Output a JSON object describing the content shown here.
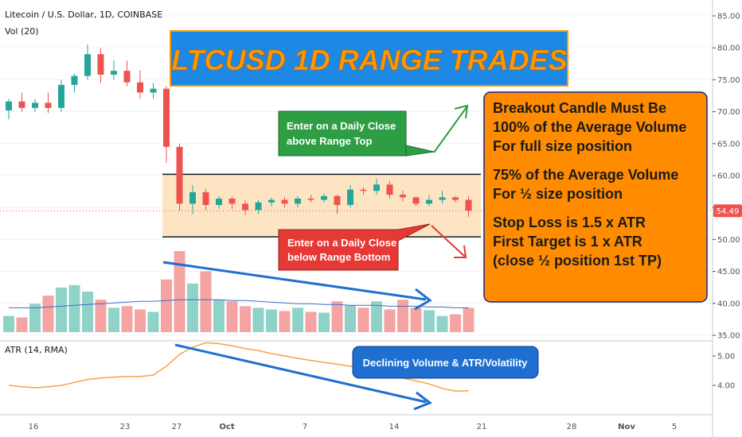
{
  "header": {
    "symbol": "Litecoin / U.S. Dollar, 1D, COINBASE",
    "volume_indicator": "Vol (20)",
    "atr_indicator": "ATR (14, RMA)"
  },
  "annotations": {
    "title": "LTCUSD 1D RANGE TRADES",
    "long_entry": [
      "Enter on a Daily Close",
      "above Range Top"
    ],
    "short_entry": [
      "Enter on a Daily Close",
      "below Range Bottom"
    ],
    "rules": [
      "Breakout Candle Must Be",
      "100% of the Average Volume",
      "For full size position",
      "",
      "75% of the Average Volume",
      "For ½ size position",
      "",
      "Stop Loss is 1.5 x ATR",
      "First Target is 1 x ATR",
      "(close ½ position 1st TP)"
    ],
    "declining": "Declining Volume & ATR/Volatility"
  },
  "colors": {
    "up": "#26a69a",
    "down": "#ef5350",
    "vol_up": "#8fd3c8",
    "vol_down": "#f5a3a3",
    "range_fill": "#fde0b8",
    "orange": "#ff8c00",
    "title_bg": "#1e88e5",
    "title_text": "#ff9800",
    "green_box": "#2e9e44",
    "red_box": "#e53935",
    "blue_arrow": "#1e6fd0",
    "atr_line": "#f7a14a",
    "vol_ma": "#3f6fc4"
  },
  "chart_data": {
    "type": "candlestick",
    "price_axis": {
      "min": 30,
      "max": 85,
      "ticks": [
        "85.00",
        "80.00",
        "75.00",
        "70.00",
        "65.00",
        "60.00",
        "55.00",
        "50.00",
        "45.00",
        "40.00",
        "35.00"
      ],
      "last_price": "54.49"
    },
    "atr_axis": {
      "ticks": [
        "5.00",
        "4.00"
      ]
    },
    "x_ticks": [
      "16",
      "23",
      "27",
      "Oct",
      "7",
      "14",
      "21",
      "28",
      "Nov",
      "5"
    ],
    "range": {
      "top": 60.2,
      "bottom": 50.4
    },
    "candles": [
      {
        "date": "Sep 12",
        "o": 70.2,
        "h": 72.0,
        "l": 68.8,
        "c": 71.6
      },
      {
        "date": "Sep 13",
        "o": 71.6,
        "h": 73.0,
        "l": 70.0,
        "c": 70.6
      },
      {
        "date": "Sep 14",
        "o": 70.6,
        "h": 72.0,
        "l": 70.0,
        "c": 71.4
      },
      {
        "date": "Sep 15",
        "o": 71.4,
        "h": 73.0,
        "l": 69.8,
        "c": 70.6
      },
      {
        "date": "Sep 16",
        "o": 70.6,
        "h": 75.0,
        "l": 70.0,
        "c": 74.2
      },
      {
        "date": "Sep 17",
        "o": 74.2,
        "h": 76.0,
        "l": 73.0,
        "c": 75.6
      },
      {
        "date": "Sep 18",
        "o": 75.6,
        "h": 80.5,
        "l": 75.0,
        "c": 79.0
      },
      {
        "date": "Sep 19",
        "o": 79.0,
        "h": 80.0,
        "l": 74.5,
        "c": 75.8
      },
      {
        "date": "Sep 20",
        "o": 75.8,
        "h": 78.0,
        "l": 75.0,
        "c": 76.4
      },
      {
        "date": "Sep 21",
        "o": 76.4,
        "h": 78.0,
        "l": 74.0,
        "c": 74.6
      },
      {
        "date": "Sep 22",
        "o": 74.6,
        "h": 76.5,
        "l": 72.0,
        "c": 73.0
      },
      {
        "date": "Sep 23",
        "o": 73.0,
        "h": 74.5,
        "l": 72.0,
        "c": 73.6
      },
      {
        "date": "Sep 24",
        "o": 73.6,
        "h": 74.0,
        "l": 62.0,
        "c": 64.5
      },
      {
        "date": "Sep 25",
        "o": 64.5,
        "h": 65.0,
        "l": 54.5,
        "c": 55.6
      },
      {
        "date": "Sep 26",
        "o": 55.6,
        "h": 58.5,
        "l": 54.0,
        "c": 57.4
      },
      {
        "date": "Sep 27",
        "o": 57.4,
        "h": 58.0,
        "l": 54.6,
        "c": 55.4
      },
      {
        "date": "Sep 28",
        "o": 55.4,
        "h": 56.8,
        "l": 54.8,
        "c": 56.4
      },
      {
        "date": "Sep 29",
        "o": 56.4,
        "h": 56.8,
        "l": 54.8,
        "c": 55.6
      },
      {
        "date": "Sep 30",
        "o": 55.6,
        "h": 56.2,
        "l": 53.8,
        "c": 54.6
      },
      {
        "date": "Oct 1",
        "o": 54.6,
        "h": 56.2,
        "l": 54.0,
        "c": 55.8
      },
      {
        "date": "Oct 2",
        "o": 55.8,
        "h": 56.6,
        "l": 55.2,
        "c": 56.2
      },
      {
        "date": "Oct 3",
        "o": 56.2,
        "h": 56.6,
        "l": 55.0,
        "c": 55.6
      },
      {
        "date": "Oct 4",
        "o": 55.6,
        "h": 56.8,
        "l": 55.0,
        "c": 56.4
      },
      {
        "date": "Oct 5",
        "o": 56.4,
        "h": 57.0,
        "l": 55.8,
        "c": 56.2
      },
      {
        "date": "Oct 6",
        "o": 56.2,
        "h": 57.2,
        "l": 55.8,
        "c": 56.8
      },
      {
        "date": "Oct 7",
        "o": 56.8,
        "h": 57.0,
        "l": 54.0,
        "c": 55.4
      },
      {
        "date": "Oct 8",
        "o": 55.4,
        "h": 58.5,
        "l": 55.0,
        "c": 57.8
      },
      {
        "date": "Oct 9",
        "o": 57.8,
        "h": 58.2,
        "l": 57.0,
        "c": 57.6
      },
      {
        "date": "Oct 10",
        "o": 57.6,
        "h": 59.5,
        "l": 57.0,
        "c": 58.6
      },
      {
        "date": "Oct 11",
        "o": 58.6,
        "h": 59.2,
        "l": 56.4,
        "c": 57.0
      },
      {
        "date": "Oct 12",
        "o": 57.0,
        "h": 57.6,
        "l": 56.0,
        "c": 56.6
      },
      {
        "date": "Oct 13",
        "o": 56.6,
        "h": 56.8,
        "l": 55.2,
        "c": 55.6
      },
      {
        "date": "Oct 14",
        "o": 55.6,
        "h": 57.0,
        "l": 55.2,
        "c": 56.2
      },
      {
        "date": "Oct 15",
        "o": 56.2,
        "h": 57.6,
        "l": 55.6,
        "c": 56.6
      },
      {
        "date": "Oct 16",
        "o": 56.6,
        "h": 56.8,
        "l": 55.8,
        "c": 56.2
      },
      {
        "date": "Oct 17",
        "o": 56.2,
        "h": 56.8,
        "l": 53.5,
        "c": 54.49
      }
    ],
    "volume": [
      0.2,
      0.18,
      0.35,
      0.45,
      0.55,
      0.58,
      0.5,
      0.4,
      0.3,
      0.32,
      0.28,
      0.25,
      0.65,
      1.0,
      0.6,
      0.75,
      0.4,
      0.38,
      0.32,
      0.3,
      0.28,
      0.26,
      0.3,
      0.25,
      0.24,
      0.38,
      0.33,
      0.3,
      0.38,
      0.28,
      0.4,
      0.3,
      0.27,
      0.2,
      0.22,
      0.3
    ],
    "volume_ma": [
      0.3,
      0.3,
      0.3,
      0.31,
      0.32,
      0.33,
      0.34,
      0.35,
      0.36,
      0.37,
      0.38,
      0.38,
      0.39,
      0.4,
      0.4,
      0.4,
      0.4,
      0.39,
      0.39,
      0.38,
      0.37,
      0.36,
      0.35,
      0.35,
      0.34,
      0.34,
      0.33,
      0.33,
      0.33,
      0.32,
      0.32,
      0.32,
      0.31,
      0.31,
      0.3,
      0.3
    ],
    "atr": [
      4.0,
      3.95,
      3.92,
      3.95,
      4.0,
      4.1,
      4.2,
      4.25,
      4.28,
      4.3,
      4.3,
      4.35,
      4.65,
      5.05,
      5.3,
      5.45,
      5.42,
      5.35,
      5.25,
      5.18,
      5.08,
      5.0,
      4.92,
      4.85,
      4.78,
      4.72,
      4.65,
      4.55,
      4.45,
      4.35,
      4.25,
      4.15,
      4.05,
      3.9,
      3.8,
      3.82
    ]
  }
}
